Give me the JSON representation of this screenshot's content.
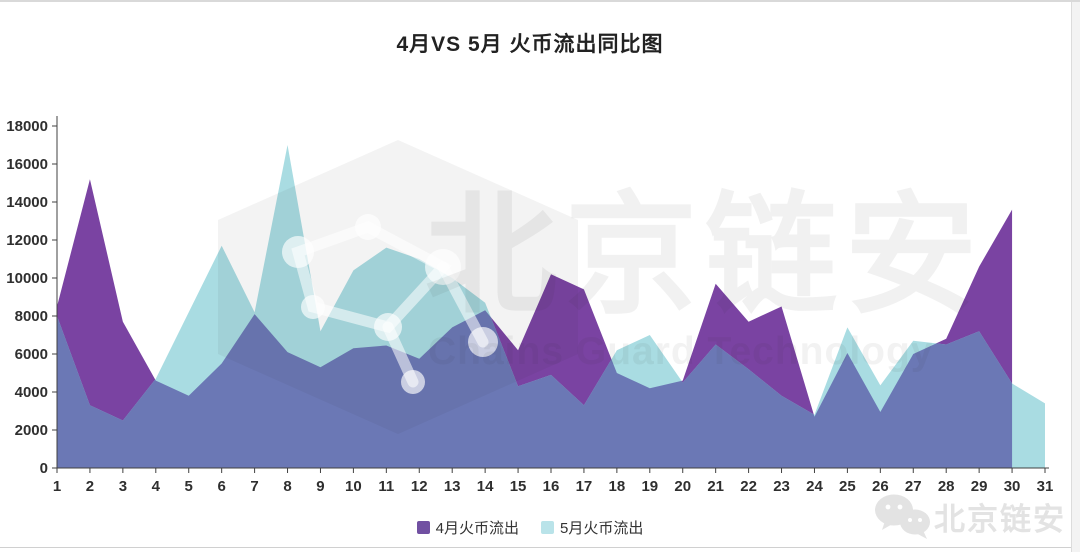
{
  "title": "4月VS 5月 火币流出同比图",
  "watermark": {
    "brand_cn": "北京链安",
    "brand_en": "Chains Guard Technology",
    "footer_brand": "北京链安"
  },
  "colors": {
    "april_area": "#7a43a2",
    "may_area": "#a9dce2",
    "overlap_area": "#6b78b5",
    "axis_line": "#404040",
    "axis_text": "#2f2f2f",
    "watermark_gray": "#ececec"
  },
  "chart_data": {
    "type": "area",
    "title": "4月VS 5月 火币流出同比图",
    "xlabel": "",
    "ylabel": "",
    "x": [
      1,
      2,
      3,
      4,
      5,
      6,
      7,
      8,
      9,
      10,
      11,
      12,
      13,
      14,
      15,
      16,
      17,
      18,
      19,
      20,
      21,
      22,
      23,
      24,
      25,
      26,
      27,
      28,
      29,
      30,
      31
    ],
    "series": [
      {
        "name": "4月火币流出",
        "color": "#7a43a2",
        "legend_swatch": "#7150a2",
        "values": [
          8500,
          15200,
          7700,
          4600,
          3800,
          5500,
          8100,
          6100,
          5300,
          6300,
          6450,
          5750,
          7400,
          8300,
          6200,
          10200,
          9400,
          5000,
          4200,
          4600,
          9700,
          7700,
          8500,
          2700,
          6050,
          2950,
          6000,
          6800,
          10600,
          13600,
          null
        ]
      },
      {
        "name": "5月火币流出",
        "color": "#a9dce2",
        "legend_swatch": "#b9e3e9",
        "values": [
          8000,
          3300,
          2500,
          4700,
          8200,
          11700,
          8200,
          17000,
          7200,
          10400,
          11600,
          11000,
          10000,
          8700,
          4300,
          4900,
          3300,
          6200,
          7000,
          4500,
          6500,
          5200,
          3800,
          2800,
          7400,
          4350,
          6700,
          6500,
          7200,
          4450,
          3400
        ]
      }
    ],
    "overlap_color": "#6b78b5",
    "ylim": [
      0,
      18000
    ],
    "ytick_step": 2000,
    "grid": false,
    "legend_position": "bottom"
  },
  "y_axis": {
    "labels": [
      "0",
      "2000",
      "4000",
      "6000",
      "8000",
      "10000",
      "12000",
      "14000",
      "16000",
      "18000"
    ]
  },
  "x_axis": {
    "labels": [
      "1",
      "2",
      "3",
      "4",
      "5",
      "6",
      "7",
      "8",
      "9",
      "10",
      "11",
      "12",
      "13",
      "14",
      "15",
      "16",
      "17",
      "18",
      "19",
      "20",
      "21",
      "22",
      "23",
      "24",
      "25",
      "26",
      "27",
      "28",
      "29",
      "30",
      "31"
    ]
  }
}
